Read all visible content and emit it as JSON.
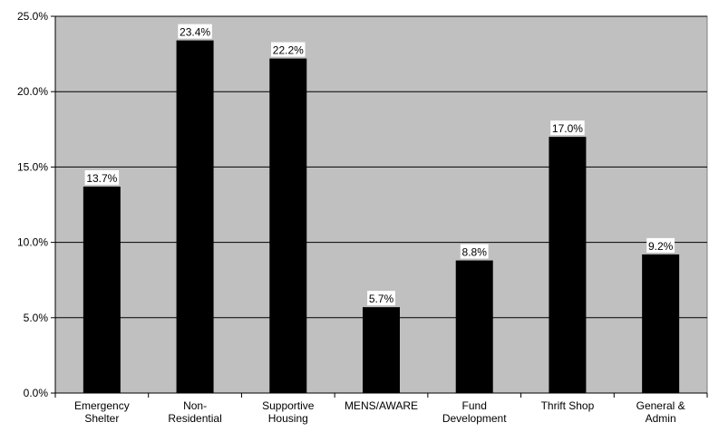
{
  "chart_data": {
    "type": "bar",
    "categories": [
      [
        "Emergency",
        "Shelter"
      ],
      [
        "Non-",
        "Residential"
      ],
      [
        "Supportive",
        "Housing"
      ],
      [
        "MENS/AWARE"
      ],
      [
        "Fund",
        "Development"
      ],
      [
        "Thrift Shop"
      ],
      [
        "General &",
        "Admin"
      ]
    ],
    "values": [
      13.7,
      23.4,
      22.2,
      5.7,
      8.8,
      17.0,
      9.2
    ],
    "data_labels": [
      "13.7%",
      "23.4%",
      "22.2%",
      "5.7%",
      "8.8%",
      "17.0%",
      "9.2%"
    ],
    "y_ticks": [
      0,
      5,
      10,
      15,
      20,
      25
    ],
    "y_tick_labels": [
      "0.0%",
      "5.0%",
      "10.0%",
      "15.0%",
      "20.0%",
      "25.0%"
    ],
    "ylim": [
      0,
      25
    ],
    "title": "",
    "xlabel": "",
    "ylabel": "",
    "grid": true,
    "legend": "none",
    "colors": {
      "plot_background": "#c0c0c0",
      "bar": "#000000",
      "gridline": "#000000",
      "label_background": "#ffffff"
    }
  }
}
